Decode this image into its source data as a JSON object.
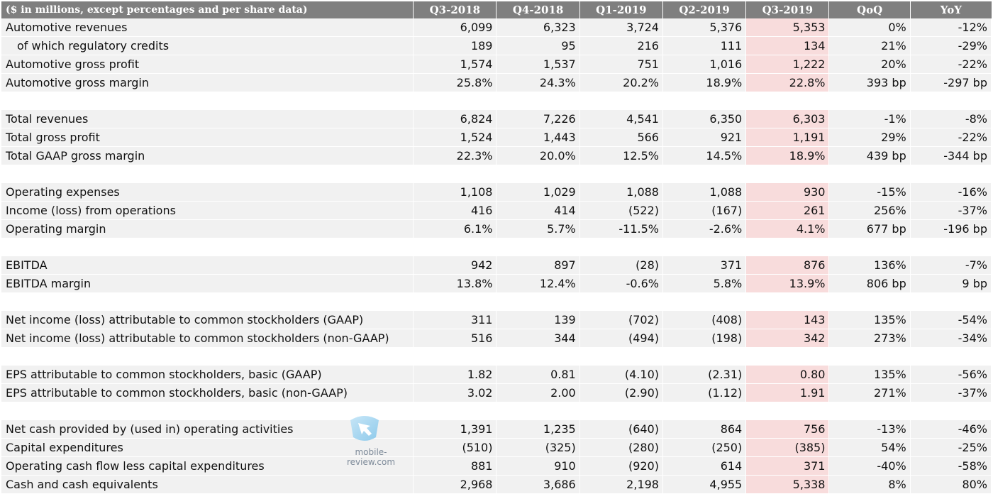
{
  "table": {
    "headers": [
      "($ in millions, except percentages and per share data)",
      "Q3-2018",
      "Q4-2018",
      "Q1-2019",
      "Q2-2019",
      "Q3-2019",
      "QoQ",
      "YoY"
    ],
    "rows": [
      {
        "label": "Automotive revenues",
        "values": [
          "6,099",
          "6,323",
          "3,724",
          "5,376",
          "5,353",
          "0%",
          "-12%"
        ]
      },
      {
        "label": "of which regulatory credits",
        "values": [
          "189",
          "95",
          "216",
          "111",
          "134",
          "21%",
          "-29%"
        ],
        "sub": true
      },
      {
        "label": "Automotive gross profit",
        "values": [
          "1,574",
          "1,537",
          "751",
          "1,016",
          "1,222",
          "20%",
          "-22%"
        ]
      },
      {
        "label": "Automotive gross margin",
        "values": [
          "25.8%",
          "24.3%",
          "20.2%",
          "18.9%",
          "22.8%",
          "393 bp",
          "-297 bp"
        ]
      },
      {
        "gap": true
      },
      {
        "label": "Total revenues",
        "values": [
          "6,824",
          "7,226",
          "4,541",
          "6,350",
          "6,303",
          "-1%",
          "-8%"
        ]
      },
      {
        "label": "Total gross profit",
        "values": [
          "1,524",
          "1,443",
          "566",
          "921",
          "1,191",
          "29%",
          "-22%"
        ]
      },
      {
        "label": "Total GAAP gross margin",
        "values": [
          "22.3%",
          "20.0%",
          "12.5%",
          "14.5%",
          "18.9%",
          "439 bp",
          "-344 bp"
        ]
      },
      {
        "gap": true
      },
      {
        "label": "Operating expenses",
        "values": [
          "1,108",
          "1,029",
          "1,088",
          "1,088",
          "930",
          "-15%",
          "-16%"
        ]
      },
      {
        "label": "Income (loss) from operations",
        "values": [
          "416",
          "414",
          "(522)",
          "(167)",
          "261",
          "256%",
          "-37%"
        ]
      },
      {
        "label": "Operating margin",
        "values": [
          "6.1%",
          "5.7%",
          "-11.5%",
          "-2.6%",
          "4.1%",
          "677 bp",
          "-196 bp"
        ]
      },
      {
        "gap": true
      },
      {
        "label": "EBITDA",
        "values": [
          "942",
          "897",
          "(28)",
          "371",
          "876",
          "136%",
          "-7%"
        ]
      },
      {
        "label": "EBITDA margin",
        "values": [
          "13.8%",
          "12.4%",
          "-0.6%",
          "5.8%",
          "13.9%",
          "806 bp",
          "9 bp"
        ]
      },
      {
        "gap": true
      },
      {
        "label": "Net income (loss) attributable to common stockholders (GAAP)",
        "values": [
          "311",
          "139",
          "(702)",
          "(408)",
          "143",
          "135%",
          "-54%"
        ]
      },
      {
        "label": "Net income (loss) attributable to common stockholders (non-GAAP)",
        "values": [
          "516",
          "344",
          "(494)",
          "(198)",
          "342",
          "273%",
          "-34%"
        ]
      },
      {
        "gap": true
      },
      {
        "label": "EPS attributable to common stockholders, basic (GAAP)",
        "values": [
          "1.82",
          "0.81",
          "(4.10)",
          "(2.31)",
          "0.80",
          "135%",
          "-56%"
        ]
      },
      {
        "label": "EPS attributable to common stockholders, basic (non-GAAP)",
        "values": [
          "3.02",
          "2.00",
          "(2.90)",
          "(1.12)",
          "1.91",
          "271%",
          "-37%"
        ]
      },
      {
        "gap": true
      },
      {
        "label": "Net cash provided by (used in) operating activities",
        "values": [
          "1,391",
          "1,235",
          "(640)",
          "864",
          "756",
          "-13%",
          "-46%"
        ]
      },
      {
        "label": "Capital expenditures",
        "values": [
          "(510)",
          "(325)",
          "(280)",
          "(250)",
          "(385)",
          "54%",
          "-25%"
        ]
      },
      {
        "label": "Operating cash flow less capital expenditures",
        "values": [
          "881",
          "910",
          "(920)",
          "614",
          "371",
          "-40%",
          "-58%"
        ]
      },
      {
        "label": "Cash and cash equivalents",
        "values": [
          "2,968",
          "3,686",
          "2,198",
          "4,955",
          "5,338",
          "8%",
          "80%"
        ]
      }
    ]
  },
  "colors": {
    "header_bg": "#7f7f7f",
    "row_bg": "#f1f1f1",
    "highlight_column": "#f8dcdc"
  },
  "watermark": {
    "text": "mobile-review.com",
    "icon": "arrow-logo-icon"
  }
}
